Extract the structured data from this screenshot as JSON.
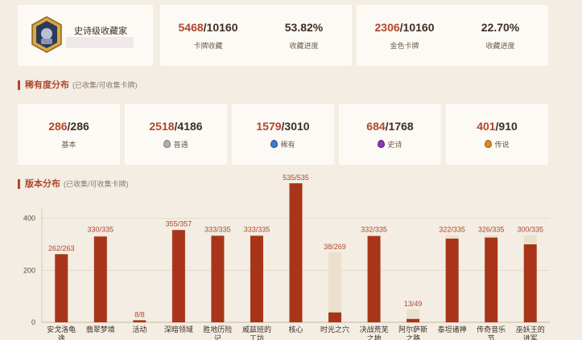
{
  "profile": {
    "title": "史诗级收藏家",
    "username": "",
    "colors": {
      "badge_ring": "#c89a3a",
      "badge_inner": "#2e3a5c"
    }
  },
  "summary": [
    {
      "collected": "5468",
      "total": "/10160",
      "label": "卡牌收藏"
    },
    {
      "value": "53.82%",
      "label": "收藏进度"
    },
    {
      "collected": "2306",
      "total": "/10160",
      "label": "金色卡牌"
    },
    {
      "value": "22.70%",
      "label": "收藏进度"
    }
  ],
  "rarity": {
    "title": "稀有度分布",
    "subtitle": "(已收集/可收集卡牌)",
    "items": [
      {
        "collected": "286",
        "total": "/286",
        "label": "基本",
        "icon": "none"
      },
      {
        "collected": "2518",
        "total": "/4186",
        "label": "普通",
        "icon": "common-gem-icon",
        "color": "#9a9a9a"
      },
      {
        "collected": "1579",
        "total": "/3010",
        "label": "稀有",
        "icon": "rare-gem-icon",
        "color": "#3a7fd0"
      },
      {
        "collected": "684",
        "total": "/1768",
        "label": "史诗",
        "icon": "epic-gem-icon",
        "color": "#8a3ab0"
      },
      {
        "collected": "401",
        "total": "/910",
        "label": "传说",
        "icon": "legendary-gem-icon",
        "color": "#e08a1a"
      }
    ]
  },
  "expansion": {
    "title": "版本分布",
    "subtitle": "(已收集/可收集卡牌)"
  },
  "chart_data": {
    "type": "bar",
    "categories": [
      "安戈洛龟途",
      "翡翠梦境",
      "活动",
      "深暗领域",
      "胜地历险记",
      "威兹班的工坊",
      "核心",
      "时光之穴",
      "决战荒芜之地",
      "阿尔萨斯之路",
      "泰坦诸神",
      "传奇音乐节",
      "巫妖王的进军"
    ],
    "series": [
      {
        "values": [
          262,
          330,
          8,
          355,
          333,
          333,
          535,
          38,
          332,
          13,
          322,
          326,
          300
        ]
      },
      {
        "values": [
          263,
          335,
          8,
          357,
          335,
          335,
          535,
          269,
          335,
          49,
          335,
          335,
          335
        ]
      }
    ],
    "data_labels": [
      "262/263",
      "330/335",
      "8/8",
      "355/357",
      "333/335",
      "333/335",
      "535/535",
      "38/269",
      "332/335",
      "13/49",
      "322/335",
      "326/335",
      "300/335"
    ],
    "yticks": [
      "0",
      "200",
      "400"
    ],
    "ylim": [
      0,
      535
    ],
    "grid": true,
    "colors": {
      "collected": "#a83519",
      "total": "#ebe0cc"
    }
  }
}
